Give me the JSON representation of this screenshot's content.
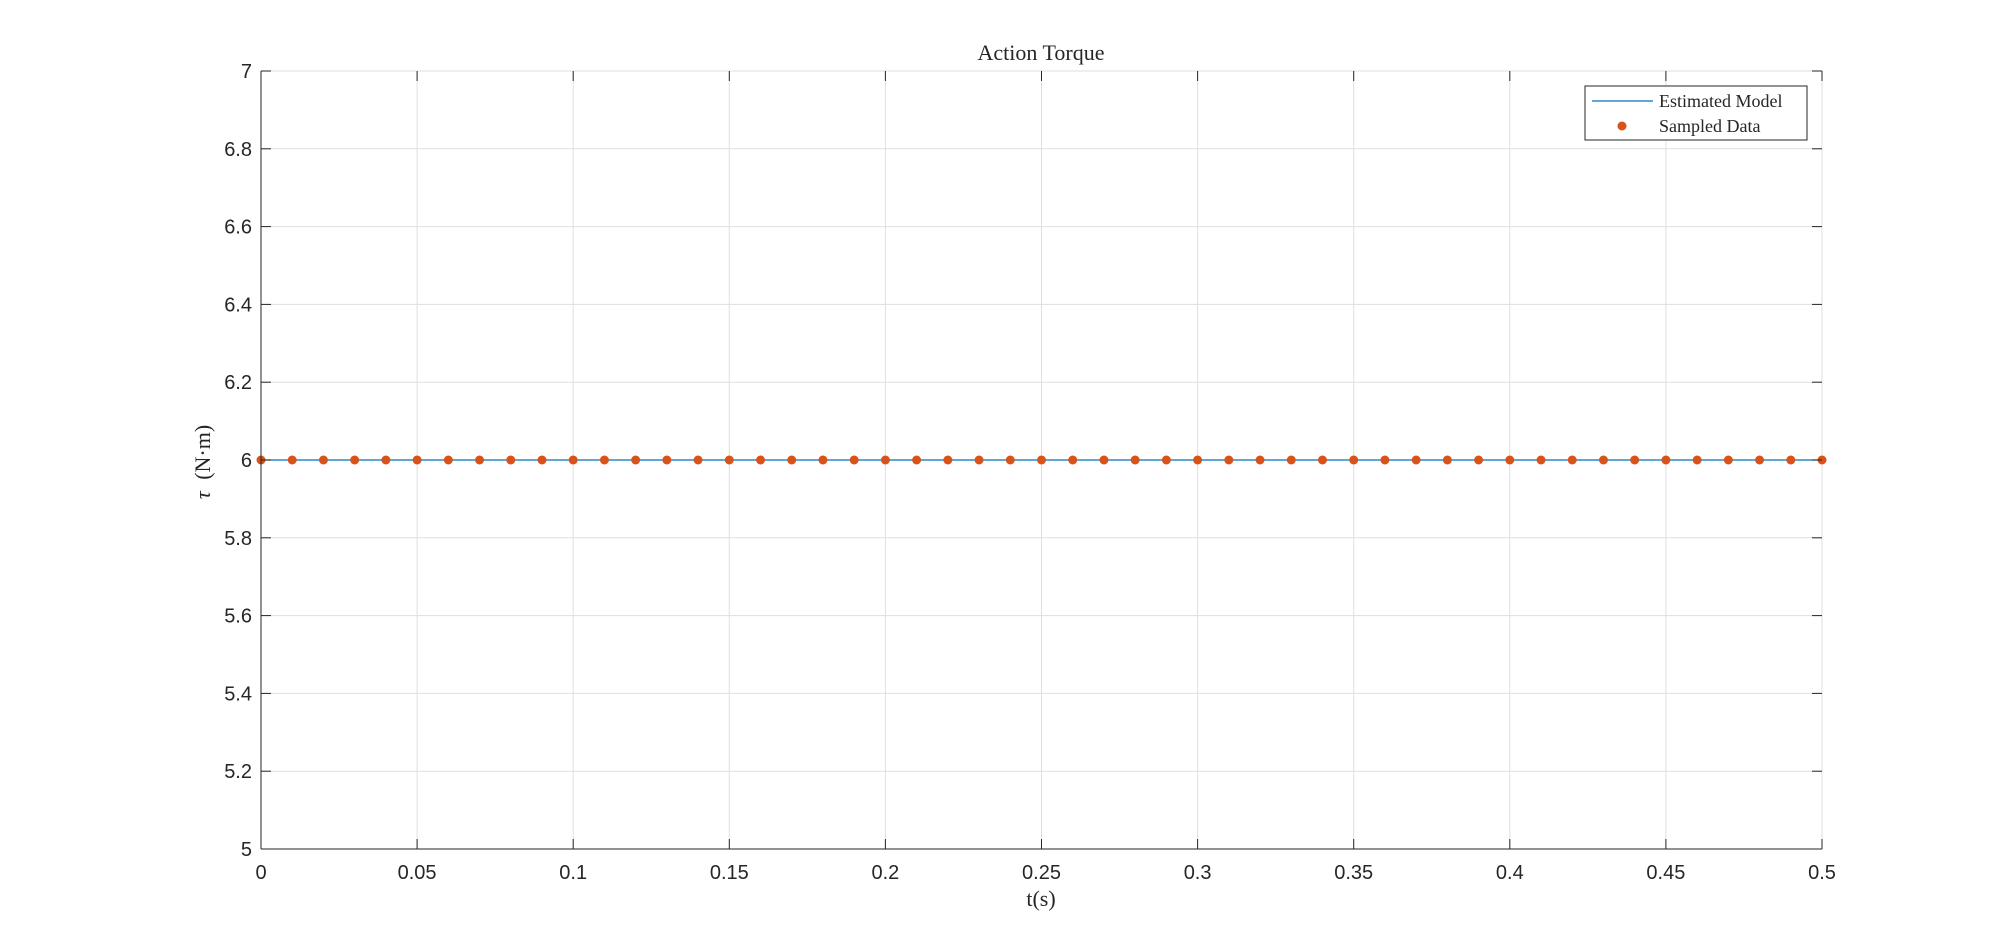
{
  "chart_data": {
    "type": "line",
    "title": "Action Torque",
    "xlabel": "t(s)",
    "ylabel_symbol": "τ",
    "ylabel_unit": "(N·m)",
    "xlim": [
      0,
      0.5
    ],
    "ylim": [
      5,
      7
    ],
    "x_ticks": [
      "0",
      "0.05",
      "0.1",
      "0.15",
      "0.2",
      "0.25",
      "0.3",
      "0.35",
      "0.4",
      "0.45",
      "0.5"
    ],
    "y_ticks": [
      "5",
      "5.2",
      "5.4",
      "5.6",
      "5.8",
      "6",
      "6.2",
      "6.4",
      "6.6",
      "6.8",
      "7"
    ],
    "grid": true,
    "legend_position": "top-right",
    "series": [
      {
        "name": "Estimated Model",
        "style": "line",
        "color": "#0072BD",
        "x": [
          0,
          0.5
        ],
        "y": [
          6,
          6
        ]
      },
      {
        "name": "Sampled Data",
        "style": "markers",
        "color": "#D95319",
        "x": [
          0,
          0.01,
          0.02,
          0.03,
          0.04,
          0.05,
          0.06,
          0.07,
          0.08,
          0.09,
          0.1,
          0.11,
          0.12,
          0.13,
          0.14,
          0.15,
          0.16,
          0.17,
          0.18,
          0.19,
          0.2,
          0.21,
          0.22,
          0.23,
          0.24,
          0.25,
          0.26,
          0.27,
          0.28,
          0.29,
          0.3,
          0.31,
          0.32,
          0.33,
          0.34,
          0.35,
          0.36,
          0.37,
          0.38,
          0.39,
          0.4,
          0.41,
          0.42,
          0.43,
          0.44,
          0.45,
          0.46,
          0.47,
          0.48,
          0.49,
          0.5
        ],
        "y": [
          6,
          6,
          6,
          6,
          6,
          6,
          6,
          6,
          6,
          6,
          6,
          6,
          6,
          6,
          6,
          6,
          6,
          6,
          6,
          6,
          6,
          6,
          6,
          6,
          6,
          6,
          6,
          6,
          6,
          6,
          6,
          6,
          6,
          6,
          6,
          6,
          6,
          6,
          6,
          6,
          6,
          6,
          6,
          6,
          6,
          6,
          6,
          6,
          6,
          6,
          6
        ]
      }
    ]
  }
}
